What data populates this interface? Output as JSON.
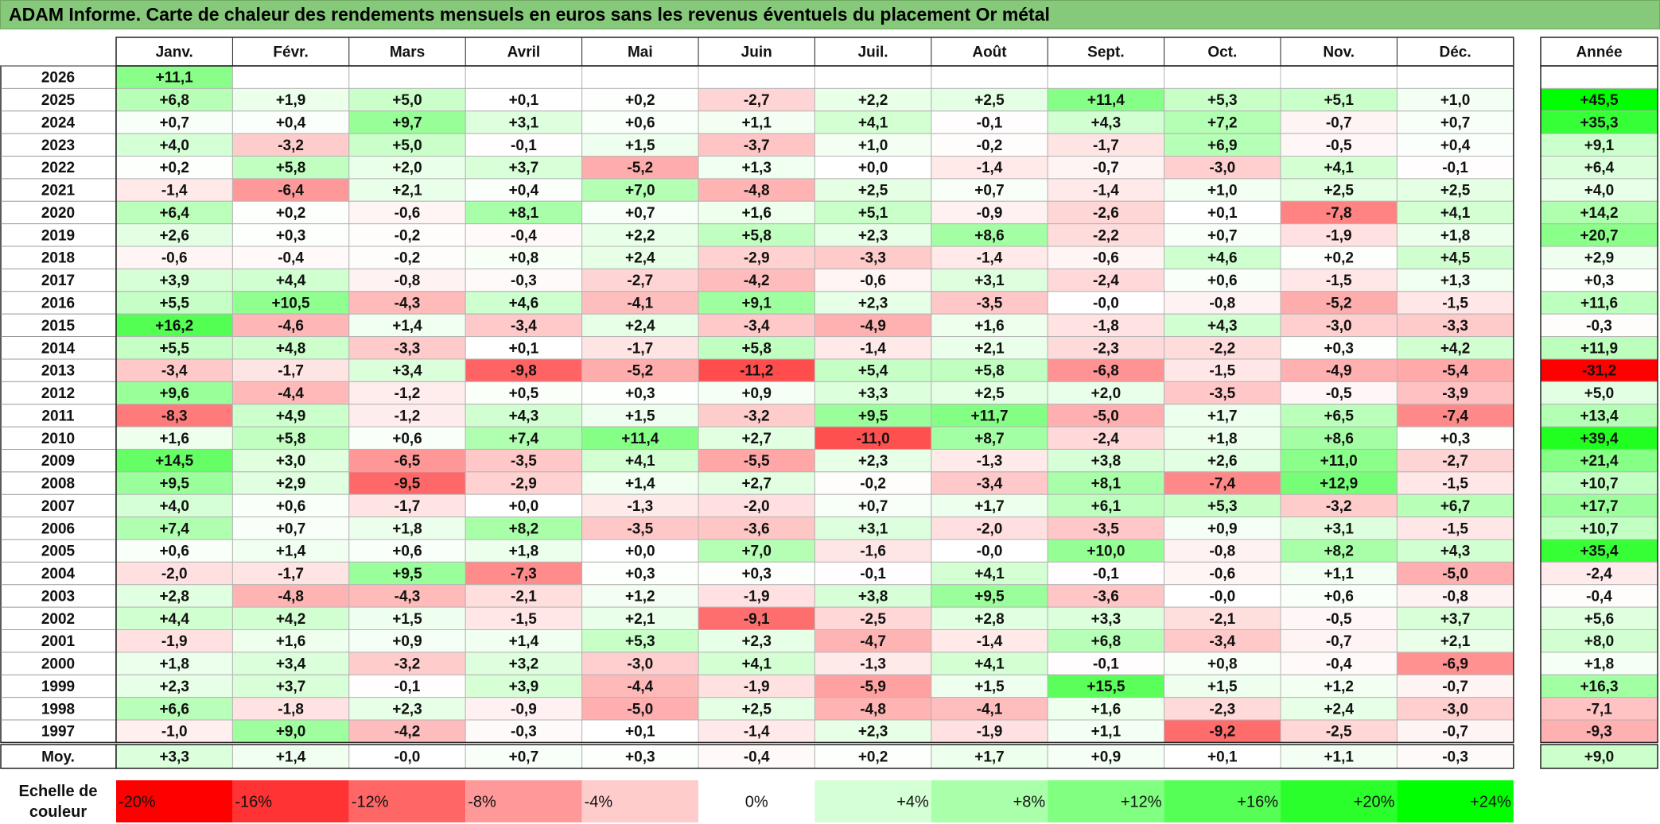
{
  "title": "ADAM Informe. Carte de chaleur des rendements mensuels en euros sans les revenus éventuels du placement Or métal",
  "colors": {
    "title_bg": "#86c97a",
    "negative": "#ff0000",
    "positive": "#00ff00",
    "neutral": "#ffffff"
  },
  "chart_data": {
    "type": "heatmap",
    "title": "ADAM Informe. Carte de chaleur des rendements mensuels en euros sans les revenus éventuels du placement Or métal",
    "columns": [
      "Janv.",
      "Févr.",
      "Mars",
      "Avril",
      "Mai",
      "Juin",
      "Juil.",
      "Août",
      "Sept.",
      "Oct.",
      "Nov.",
      "Déc."
    ],
    "year_column": "Année",
    "rows": [
      {
        "year": "2026",
        "values": [
          "+11,1",
          "",
          "",
          "",
          "",
          "",
          "",
          "",
          "",
          "",
          "",
          ""
        ],
        "annual": ""
      },
      {
        "year": "2025",
        "values": [
          "+6,8",
          "+1,9",
          "+5,0",
          "+0,1",
          "+0,2",
          "-2,7",
          "+2,2",
          "+2,5",
          "+11,4",
          "+5,3",
          "+5,1",
          "+1,0"
        ],
        "annual": "+45,5"
      },
      {
        "year": "2024",
        "values": [
          "+0,7",
          "+0,4",
          "+9,7",
          "+3,1",
          "+0,6",
          "+1,1",
          "+4,1",
          "-0,1",
          "+4,3",
          "+7,2",
          "-0,7",
          "+0,7"
        ],
        "annual": "+35,3"
      },
      {
        "year": "2023",
        "values": [
          "+4,0",
          "-3,2",
          "+5,0",
          "-0,1",
          "+1,5",
          "-3,7",
          "+1,0",
          "-0,2",
          "-1,7",
          "+6,9",
          "-0,5",
          "+0,4"
        ],
        "annual": "+9,1"
      },
      {
        "year": "2022",
        "values": [
          "+0,2",
          "+5,8",
          "+2,0",
          "+3,7",
          "-5,2",
          "+1,3",
          "+0,0",
          "-1,4",
          "-0,7",
          "-3,0",
          "+4,1",
          "-0,1"
        ],
        "annual": "+6,4"
      },
      {
        "year": "2021",
        "values": [
          "-1,4",
          "-6,4",
          "+2,1",
          "+0,4",
          "+7,0",
          "-4,8",
          "+2,5",
          "+0,7",
          "-1,4",
          "+1,0",
          "+2,5",
          "+2,5"
        ],
        "annual": "+4,0"
      },
      {
        "year": "2020",
        "values": [
          "+6,4",
          "+0,2",
          "-0,6",
          "+8,1",
          "+0,7",
          "+1,6",
          "+5,1",
          "-0,9",
          "-2,6",
          "+0,1",
          "-7,8",
          "+4,1"
        ],
        "annual": "+14,2"
      },
      {
        "year": "2019",
        "values": [
          "+2,6",
          "+0,3",
          "-0,2",
          "-0,4",
          "+2,2",
          "+5,8",
          "+2,3",
          "+8,6",
          "-2,2",
          "+0,7",
          "-1,9",
          "+1,8"
        ],
        "annual": "+20,7"
      },
      {
        "year": "2018",
        "values": [
          "-0,6",
          "-0,4",
          "-0,2",
          "+0,8",
          "+2,4",
          "-2,9",
          "-3,3",
          "-1,4",
          "-0,6",
          "+4,6",
          "+0,2",
          "+4,5"
        ],
        "annual": "+2,9"
      },
      {
        "year": "2017",
        "values": [
          "+3,9",
          "+4,4",
          "-0,8",
          "-0,3",
          "-2,7",
          "-4,2",
          "-0,6",
          "+3,1",
          "-2,4",
          "+0,6",
          "-1,5",
          "+1,3"
        ],
        "annual": "+0,3"
      },
      {
        "year": "2016",
        "values": [
          "+5,5",
          "+10,5",
          "-4,3",
          "+4,6",
          "-4,1",
          "+9,1",
          "+2,3",
          "-3,5",
          "-0,0",
          "-0,8",
          "-5,2",
          "-1,5"
        ],
        "annual": "+11,6"
      },
      {
        "year": "2015",
        "values": [
          "+16,2",
          "-4,6",
          "+1,4",
          "-3,4",
          "+2,4",
          "-3,4",
          "-4,9",
          "+1,6",
          "-1,8",
          "+4,3",
          "-3,0",
          "-3,3"
        ],
        "annual": "-0,3"
      },
      {
        "year": "2014",
        "values": [
          "+5,5",
          "+4,8",
          "-3,3",
          "+0,1",
          "-1,7",
          "+5,8",
          "-1,4",
          "+2,1",
          "-2,3",
          "-2,2",
          "+0,3",
          "+4,2"
        ],
        "annual": "+11,9"
      },
      {
        "year": "2013",
        "values": [
          "-3,4",
          "-1,7",
          "+3,4",
          "-9,8",
          "-5,2",
          "-11,2",
          "+5,4",
          "+5,8",
          "-6,8",
          "-1,5",
          "-4,9",
          "-5,4"
        ],
        "annual": "-31,2"
      },
      {
        "year": "2012",
        "values": [
          "+9,6",
          "-4,4",
          "-1,2",
          "+0,5",
          "+0,3",
          "+0,9",
          "+3,3",
          "+2,5",
          "+2,0",
          "-3,5",
          "-0,5",
          "-3,9"
        ],
        "annual": "+5,0"
      },
      {
        "year": "2011",
        "values": [
          "-8,3",
          "+4,9",
          "-1,2",
          "+4,3",
          "+1,5",
          "-3,2",
          "+9,5",
          "+11,7",
          "-5,0",
          "+1,7",
          "+6,5",
          "-7,4"
        ],
        "annual": "+13,4"
      },
      {
        "year": "2010",
        "values": [
          "+1,6",
          "+5,8",
          "+0,6",
          "+7,4",
          "+11,4",
          "+2,7",
          "-11,0",
          "+8,7",
          "-2,4",
          "+1,8",
          "+8,6",
          "+0,3"
        ],
        "annual": "+39,4"
      },
      {
        "year": "2009",
        "values": [
          "+14,5",
          "+3,0",
          "-6,5",
          "-3,5",
          "+4,1",
          "-5,5",
          "+2,3",
          "-1,3",
          "+3,8",
          "+2,6",
          "+11,0",
          "-2,7"
        ],
        "annual": "+21,4"
      },
      {
        "year": "2008",
        "values": [
          "+9,5",
          "+2,9",
          "-9,5",
          "-2,9",
          "+1,4",
          "+2,7",
          "-0,2",
          "-3,4",
          "+8,1",
          "-7,4",
          "+12,9",
          "-1,5"
        ],
        "annual": "+10,7"
      },
      {
        "year": "2007",
        "values": [
          "+4,0",
          "+0,6",
          "-1,7",
          "+0,0",
          "-1,3",
          "-2,0",
          "+0,7",
          "+1,7",
          "+6,1",
          "+5,3",
          "-3,2",
          "+6,7"
        ],
        "annual": "+17,7"
      },
      {
        "year": "2006",
        "values": [
          "+7,4",
          "+0,7",
          "+1,8",
          "+8,2",
          "-3,5",
          "-3,6",
          "+3,1",
          "-2,0",
          "-3,5",
          "+0,9",
          "+3,1",
          "-1,5"
        ],
        "annual": "+10,7"
      },
      {
        "year": "2005",
        "values": [
          "+0,6",
          "+1,4",
          "+0,6",
          "+1,8",
          "+0,0",
          "+7,0",
          "-1,6",
          "-0,0",
          "+10,0",
          "-0,8",
          "+8,2",
          "+4,3"
        ],
        "annual": "+35,4"
      },
      {
        "year": "2004",
        "values": [
          "-2,0",
          "-1,7",
          "+9,5",
          "-7,3",
          "+0,3",
          "+0,3",
          "-0,1",
          "+4,1",
          "-0,1",
          "-0,6",
          "+1,1",
          "-5,0"
        ],
        "annual": "-2,4"
      },
      {
        "year": "2003",
        "values": [
          "+2,8",
          "-4,8",
          "-4,3",
          "-2,1",
          "+1,2",
          "-1,9",
          "+3,8",
          "+9,5",
          "-3,6",
          "-0,0",
          "+0,6",
          "-0,8"
        ],
        "annual": "-0,4"
      },
      {
        "year": "2002",
        "values": [
          "+4,4",
          "+4,2",
          "+1,5",
          "-1,5",
          "+2,1",
          "-9,1",
          "-2,5",
          "+2,8",
          "+3,3",
          "-2,1",
          "-0,5",
          "+3,7"
        ],
        "annual": "+5,6"
      },
      {
        "year": "2001",
        "values": [
          "-1,9",
          "+1,6",
          "+0,9",
          "+1,4",
          "+5,3",
          "+2,3",
          "-4,7",
          "-1,4",
          "+6,8",
          "-3,4",
          "-0,7",
          "+2,1"
        ],
        "annual": "+8,0"
      },
      {
        "year": "2000",
        "values": [
          "+1,8",
          "+3,4",
          "-3,2",
          "+3,2",
          "-3,0",
          "+4,1",
          "-1,3",
          "+4,1",
          "-0,1",
          "+0,8",
          "-0,4",
          "-6,9"
        ],
        "annual": "+1,8"
      },
      {
        "year": "1999",
        "values": [
          "+2,3",
          "+3,7",
          "-0,1",
          "+3,9",
          "-4,4",
          "-1,9",
          "-5,9",
          "+1,5",
          "+15,5",
          "+1,5",
          "+1,2",
          "-0,7"
        ],
        "annual": "+16,3"
      },
      {
        "year": "1998",
        "values": [
          "+6,6",
          "-1,8",
          "+2,3",
          "-0,9",
          "-5,0",
          "+2,5",
          "-4,8",
          "-4,1",
          "+1,6",
          "-2,3",
          "+2,4",
          "-3,0"
        ],
        "annual": "-7,1"
      },
      {
        "year": "1997",
        "values": [
          "-1,0",
          "+9,0",
          "-4,2",
          "-0,3",
          "+0,1",
          "-1,4",
          "+2,3",
          "-1,9",
          "+1,1",
          "-9,2",
          "-2,5",
          "-0,7"
        ],
        "annual": "-9,3"
      }
    ],
    "average": {
      "label": "Moy.",
      "values": [
        "+3,3",
        "+1,4",
        "-0,0",
        "+0,7",
        "+0,3",
        "-0,4",
        "+0,2",
        "+1,7",
        "+0,9",
        "+0,1",
        "+1,1",
        "-0,3"
      ],
      "annual": "+9,0"
    },
    "scale": {
      "label_line1": "Echelle de",
      "label_line2": "couleur",
      "steps": [
        "-20%",
        "-16%",
        "-12%",
        "-8%",
        "-4%",
        "0%",
        "+4%",
        "+8%",
        "+12%",
        "+16%",
        "+20%",
        "+24%"
      ]
    }
  }
}
